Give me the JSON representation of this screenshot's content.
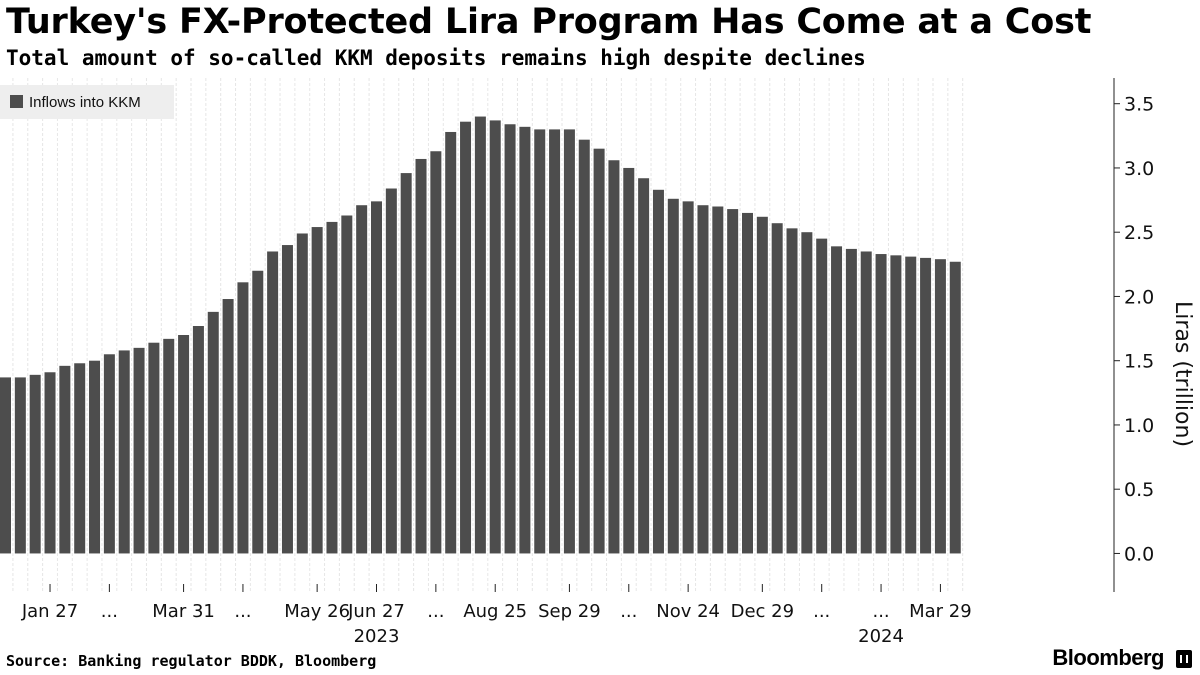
{
  "header": {
    "title": "Turkey's FX-Protected Lira Program Has Come at a Cost",
    "subtitle": "Total amount of so-called KKM deposits remains high despite declines"
  },
  "footer": {
    "source": "Source: Banking regulator BDDK, Bloomberg",
    "brand": "Bloomberg"
  },
  "colors": {
    "bar": "#4d4d4d",
    "grid": "#e6e6e6",
    "legend_bg": "#eeeeee"
  },
  "chart_data": {
    "type": "bar",
    "title": "Turkey's FX-Protected Lira Program Has Come at a Cost",
    "subtitle": "Total amount of so-called KKM deposits remains high despite declines",
    "xlabel": "",
    "ylabel": "Liras (trillion)",
    "ylim": [
      -0.3,
      3.7
    ],
    "yticks": [
      0.0,
      0.5,
      1.0,
      1.5,
      2.0,
      2.5,
      3.0,
      3.5
    ],
    "ytick_labels": [
      "0.0",
      "0.5",
      "1.0",
      "1.5",
      "2.0",
      "2.5",
      "3.0",
      "3.5"
    ],
    "grid": "vertical",
    "legend": {
      "position": "top-left",
      "entries": [
        "Inflows into KKM"
      ]
    },
    "series": [
      {
        "name": "Inflows into KKM",
        "values": [
          1.37,
          1.37,
          1.39,
          1.41,
          1.46,
          1.48,
          1.5,
          1.55,
          1.58,
          1.6,
          1.64,
          1.67,
          1.7,
          1.77,
          1.88,
          1.98,
          2.11,
          2.2,
          2.35,
          2.4,
          2.49,
          2.54,
          2.58,
          2.63,
          2.71,
          2.74,
          2.84,
          2.96,
          3.07,
          3.13,
          3.28,
          3.36,
          3.4,
          3.37,
          3.34,
          3.32,
          3.3,
          3.3,
          3.3,
          3.22,
          3.15,
          3.06,
          3.0,
          2.92,
          2.83,
          2.76,
          2.74,
          2.71,
          2.7,
          2.68,
          2.65,
          2.62,
          2.57,
          2.53,
          2.5,
          2.45,
          2.39,
          2.37,
          2.35,
          2.33,
          2.32,
          2.31,
          2.3,
          2.29,
          2.27
        ]
      }
    ],
    "xtick_labels": [
      {
        "bar": 3,
        "label": "Jan 27"
      },
      {
        "bar": 7,
        "label": "..."
      },
      {
        "bar": 12,
        "label": "Mar 31"
      },
      {
        "bar": 16,
        "label": "..."
      },
      {
        "bar": 21,
        "label": "May 26"
      },
      {
        "bar": 25,
        "label": "Jun 27"
      },
      {
        "bar": 29,
        "label": "..."
      },
      {
        "bar": 33,
        "label": "Aug 25"
      },
      {
        "bar": 38,
        "label": "Sep 29"
      },
      {
        "bar": 42,
        "label": "..."
      },
      {
        "bar": 46,
        "label": "Nov 24"
      },
      {
        "bar": 51,
        "label": "Dec 29"
      },
      {
        "bar": 55,
        "label": "..."
      },
      {
        "bar": 59,
        "label": "..."
      },
      {
        "bar": 63,
        "label": "Mar 29"
      }
    ],
    "year_labels": [
      {
        "bar": 25,
        "label": "2023"
      },
      {
        "bar": 59,
        "label": "2024"
      }
    ]
  }
}
